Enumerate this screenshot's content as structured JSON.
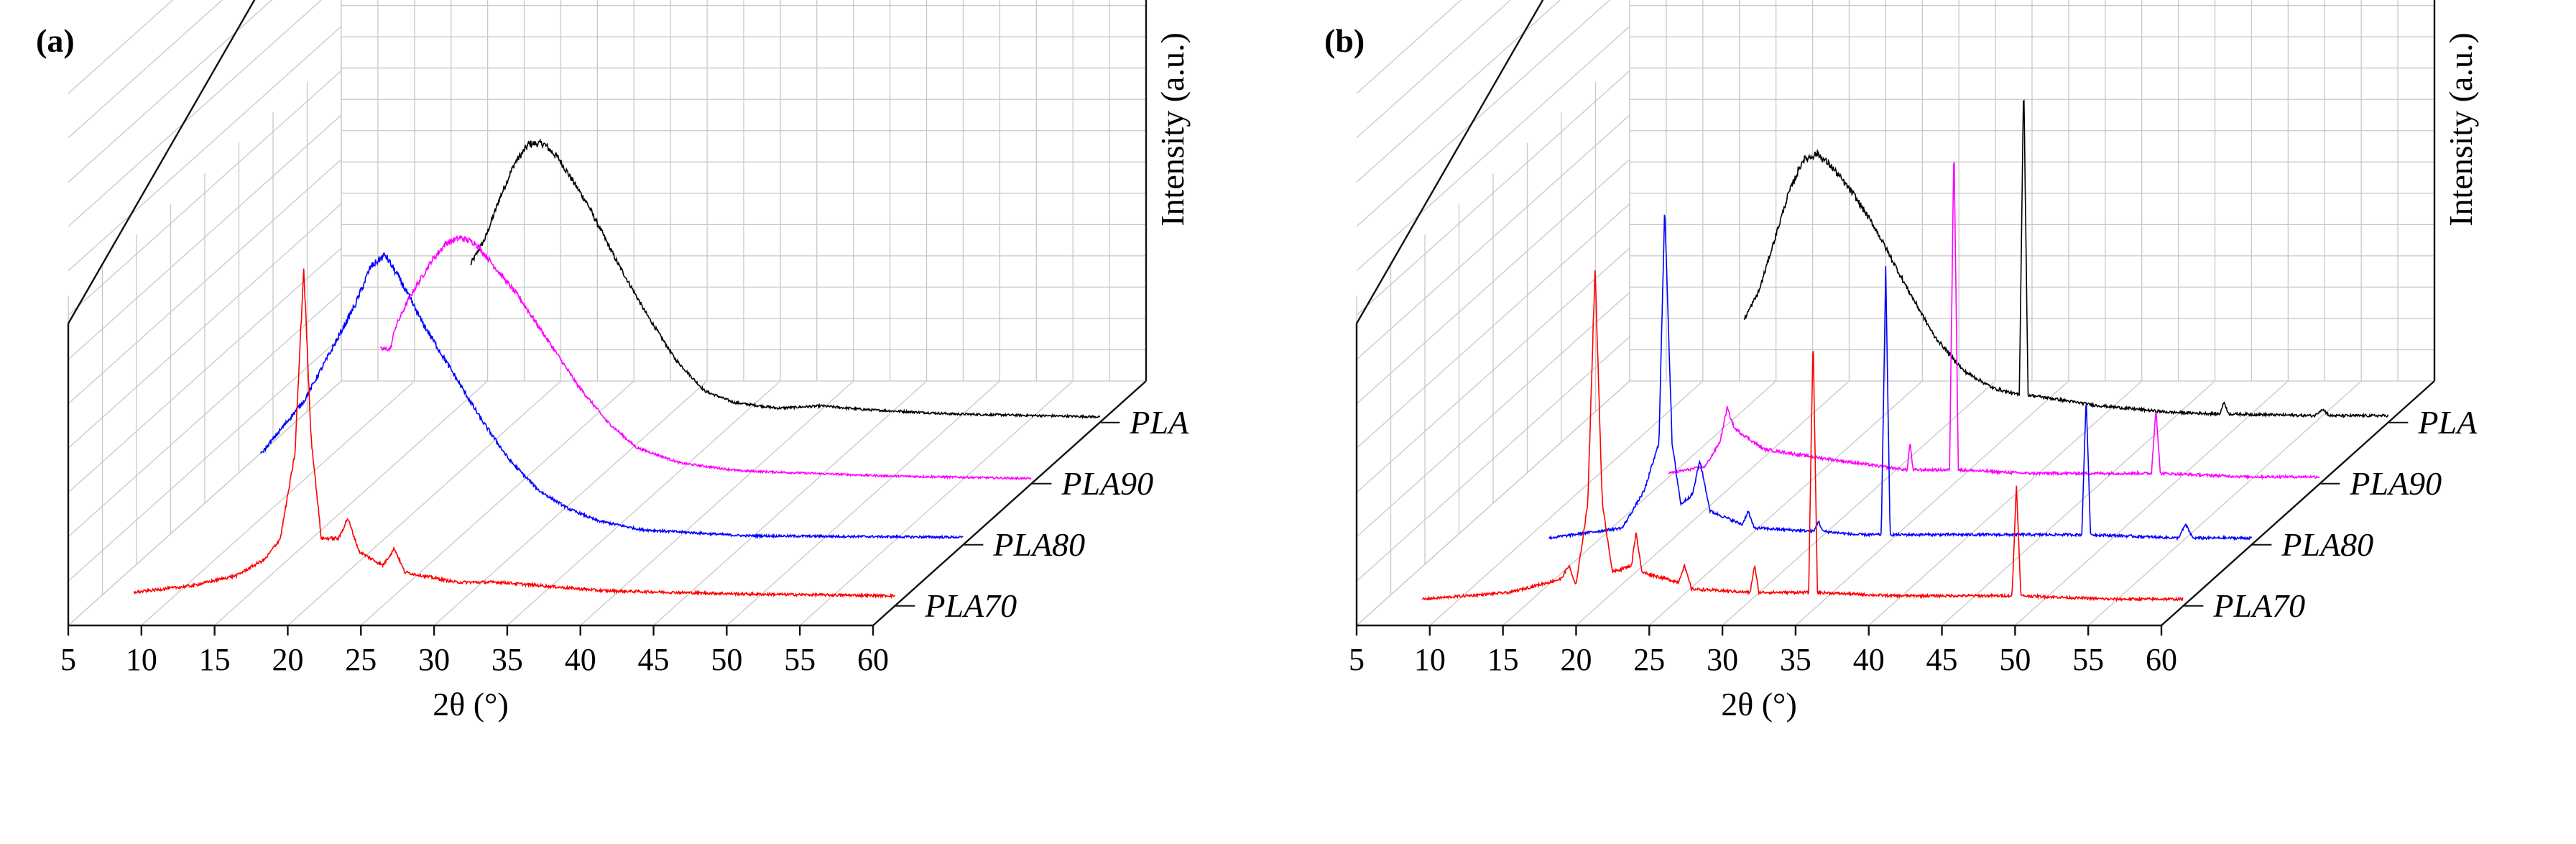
{
  "chart_data": [
    {
      "panel": "(a)",
      "type": "line",
      "style": "3d-waterfall",
      "x_label": "2θ (°)",
      "y_label": "Intensity (a.u.)",
      "x_range": [
        5,
        60
      ],
      "x_ticks": [
        "5",
        "10",
        "15",
        "20",
        "25",
        "30",
        "35",
        "40",
        "45",
        "50",
        "55",
        "60"
      ],
      "series": [
        {
          "name": "PLA70",
          "color": "#ff0000",
          "x_start": 8,
          "points": [
            [
              8,
              0.04
            ],
            [
              12,
              0.06
            ],
            [
              15,
              0.09
            ],
            [
              17,
              0.14
            ],
            [
              18,
              0.2
            ],
            [
              19,
              0.45
            ],
            [
              19.6,
              1.0
            ],
            [
              20.1,
              0.5
            ],
            [
              20.8,
              0.2
            ],
            [
              22,
              0.2
            ],
            [
              22.6,
              0.26
            ],
            [
              23.4,
              0.16
            ],
            [
              25,
              0.12
            ],
            [
              25.8,
              0.17
            ],
            [
              26.5,
              0.1
            ],
            [
              30,
              0.07
            ],
            [
              33,
              0.07
            ],
            [
              40,
              0.045
            ],
            [
              50,
              0.035
            ],
            [
              60,
              0.03
            ]
          ]
        },
        {
          "name": "PLA80",
          "color": "#0000ff",
          "x_start": 12,
          "points": [
            [
              12,
              0.3
            ],
            [
              13,
              0.36
            ],
            [
              15,
              0.48
            ],
            [
              17,
              0.66
            ],
            [
              18.5,
              0.8
            ],
            [
              19.5,
              0.92
            ],
            [
              20.5,
              0.96
            ],
            [
              21.5,
              0.88
            ],
            [
              23,
              0.74
            ],
            [
              25,
              0.58
            ],
            [
              27,
              0.42
            ],
            [
              29,
              0.28
            ],
            [
              31,
              0.18
            ],
            [
              33,
              0.12
            ],
            [
              35,
              0.08
            ],
            [
              38,
              0.05
            ],
            [
              45,
              0.03
            ],
            [
              60,
              0.025
            ]
          ]
        },
        {
          "name": "PLA90",
          "color": "#ff00ff",
          "x_start": 15.5,
          "points": [
            [
              15.5,
              0.52
            ],
            [
              16.2,
              0.52
            ],
            [
              16.5,
              0.6
            ],
            [
              17.5,
              0.72
            ],
            [
              19,
              0.86
            ],
            [
              20,
              0.93
            ],
            [
              21,
              0.95
            ],
            [
              22,
              0.93
            ],
            [
              23,
              0.86
            ],
            [
              25,
              0.72
            ],
            [
              27,
              0.55
            ],
            [
              29,
              0.38
            ],
            [
              31,
              0.24
            ],
            [
              33,
              0.14
            ],
            [
              36,
              0.08
            ],
            [
              40,
              0.05
            ],
            [
              50,
              0.03
            ],
            [
              60,
              0.02
            ]
          ]
        },
        {
          "name": "PLA",
          "color": "#000000",
          "x_start": 17,
          "points": [
            [
              17,
              0.55
            ],
            [
              18,
              0.64
            ],
            [
              19,
              0.78
            ],
            [
              20,
              0.9
            ],
            [
              21,
              0.97
            ],
            [
              22,
              0.97
            ],
            [
              23,
              0.92
            ],
            [
              25,
              0.76
            ],
            [
              27,
              0.56
            ],
            [
              29,
              0.38
            ],
            [
              31,
              0.22
            ],
            [
              33,
              0.11
            ],
            [
              35,
              0.07
            ],
            [
              38,
              0.05
            ],
            [
              41,
              0.058
            ],
            [
              44,
              0.045
            ],
            [
              50,
              0.03
            ],
            [
              55,
              0.025
            ],
            [
              60,
              0.02
            ]
          ]
        }
      ]
    },
    {
      "panel": "(b)",
      "type": "line",
      "style": "3d-waterfall",
      "x_label": "2θ (°)",
      "y_label": "Intensity (a.u.)",
      "x_range": [
        5,
        60
      ],
      "x_ticks": [
        "5",
        "10",
        "15",
        "20",
        "25",
        "30",
        "35",
        "40",
        "45",
        "50",
        "55",
        "60"
      ],
      "series": [
        {
          "name": "PLA70",
          "color": "#ff0000",
          "x_start": 8,
          "points": [
            [
              8,
              0.02
            ],
            [
              14,
              0.04
            ],
            [
              17.5,
              0.08
            ],
            [
              18,
              0.12
            ],
            [
              18.5,
              0.06
            ],
            [
              19.3,
              0.3
            ],
            [
              19.8,
              1.0
            ],
            [
              20.3,
              0.3
            ],
            [
              21,
              0.1
            ],
            [
              22.3,
              0.12
            ],
            [
              22.6,
              0.22
            ],
            [
              23,
              0.1
            ],
            [
              25.5,
              0.07
            ],
            [
              25.9,
              0.12
            ],
            [
              26.4,
              0.05
            ],
            [
              30.4,
              0.04
            ],
            [
              30.7,
              0.12
            ],
            [
              31,
              0.04
            ],
            [
              34.4,
              0.04
            ],
            [
              34.7,
              0.8
            ],
            [
              35,
              0.04
            ],
            [
              40,
              0.03
            ],
            [
              48.3,
              0.03
            ],
            [
              48.6,
              0.36
            ],
            [
              48.9,
              0.03
            ],
            [
              55,
              0.02
            ],
            [
              60,
              0.02
            ]
          ]
        },
        {
          "name": "PLA80",
          "color": "#0000ff",
          "x_start": 12,
          "points": [
            [
              12,
              0.02
            ],
            [
              17,
              0.05
            ],
            [
              18.5,
              0.16
            ],
            [
              19.5,
              0.3
            ],
            [
              19.9,
              1.0
            ],
            [
              20.4,
              0.3
            ],
            [
              21,
              0.12
            ],
            [
              21.8,
              0.15
            ],
            [
              22.3,
              0.25
            ],
            [
              23,
              0.1
            ],
            [
              25.2,
              0.06
            ],
            [
              25.6,
              0.1
            ],
            [
              26,
              0.05
            ],
            [
              30.1,
              0.04
            ],
            [
              30.4,
              0.07
            ],
            [
              30.7,
              0.04
            ],
            [
              33,
              0.03
            ],
            [
              34.7,
              0.03
            ],
            [
              35,
              0.82
            ],
            [
              35.3,
              0.03
            ],
            [
              43,
              0.03
            ],
            [
              48.4,
              0.03
            ],
            [
              48.7,
              0.44
            ],
            [
              49,
              0.03
            ],
            [
              55,
              0.02
            ],
            [
              55.5,
              0.06
            ],
            [
              56,
              0.02
            ],
            [
              60,
              0.02
            ]
          ]
        },
        {
          "name": "PLA90",
          "color": "#ff00ff",
          "x_start": 15.5,
          "points": [
            [
              15.5,
              0.03
            ],
            [
              18,
              0.05
            ],
            [
              19,
              0.12
            ],
            [
              19.5,
              0.22
            ],
            [
              20,
              0.16
            ],
            [
              22,
              0.1
            ],
            [
              25,
              0.08
            ],
            [
              30,
              0.05
            ],
            [
              31.8,
              0.04
            ],
            [
              32,
              0.12
            ],
            [
              32.2,
              0.04
            ],
            [
              34.7,
              0.04
            ],
            [
              35,
              1.0
            ],
            [
              35.3,
              0.04
            ],
            [
              40,
              0.03
            ],
            [
              48.5,
              0.03
            ],
            [
              48.8,
              0.22
            ],
            [
              49.1,
              0.03
            ],
            [
              55,
              0.02
            ],
            [
              60,
              0.02
            ]
          ]
        },
        {
          "name": "PLA",
          "color": "#000000",
          "x_start": 16,
          "points": [
            [
              16,
              0.3
            ],
            [
              17,
              0.38
            ],
            [
              18,
              0.52
            ],
            [
              19,
              0.66
            ],
            [
              20,
              0.76
            ],
            [
              21,
              0.78
            ],
            [
              22,
              0.74
            ],
            [
              23.5,
              0.66
            ],
            [
              25,
              0.56
            ],
            [
              27,
              0.4
            ],
            [
              29,
              0.25
            ],
            [
              31,
              0.15
            ],
            [
              33,
              0.1
            ],
            [
              34.8,
              0.08
            ],
            [
              35.1,
              1.0
            ],
            [
              35.4,
              0.08
            ],
            [
              37,
              0.07
            ],
            [
              40,
              0.05
            ],
            [
              45,
              0.03
            ],
            [
              48.5,
              0.025
            ],
            [
              48.8,
              0.06
            ],
            [
              49.1,
              0.025
            ],
            [
              55,
              0.02
            ],
            [
              55.5,
              0.04
            ],
            [
              56,
              0.02
            ],
            [
              60,
              0.02
            ]
          ]
        }
      ]
    }
  ]
}
